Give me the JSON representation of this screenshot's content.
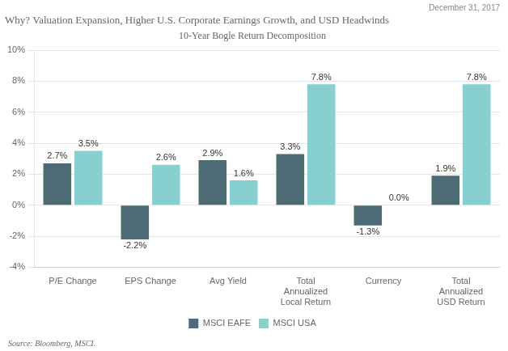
{
  "chart_data": {
    "type": "bar",
    "title": "Why? Valuation Expansion, Higher U.S. Corporate Earnings Growth, and USD Headwinds",
    "subtitle": "10-Year Bogle Return Decomposition",
    "annotations": [
      "December 31, 2017",
      "Source: Bloomberg, MSCI."
    ],
    "categories": [
      "P/E Change",
      "EPS Change",
      "Avg Yield",
      "Total\nAnnualized\nLocal Return",
      "Currency",
      "Total\nAnnualized\nUSD Return"
    ],
    "series": [
      {
        "name": "MSCI EAFE",
        "color": "#4d6b74",
        "values": [
          2.7,
          -2.2,
          2.9,
          3.3,
          -1.3,
          1.9
        ],
        "value_labels": [
          "2.7%",
          "-2.2%",
          "2.9%",
          "3.3%",
          "-1.3%",
          "1.9%"
        ]
      },
      {
        "name": "MSCI USA",
        "color": "#88d0d0",
        "values": [
          3.5,
          2.6,
          1.6,
          7.8,
          0.0,
          7.8
        ],
        "value_labels": [
          "3.5%",
          "2.6%",
          "1.6%",
          "7.8%",
          "0.0%",
          "7.8%"
        ]
      }
    ],
    "ylim": [
      -4,
      10
    ],
    "yticks": [
      {
        "value": -4,
        "label": "-4%"
      },
      {
        "value": -2,
        "label": "-2%"
      },
      {
        "value": 0,
        "label": "0%"
      },
      {
        "value": 2,
        "label": "2%"
      },
      {
        "value": 4,
        "label": "4%"
      },
      {
        "value": 6,
        "label": "6%"
      },
      {
        "value": 8,
        "label": "8%"
      },
      {
        "value": 10,
        "label": "10%"
      }
    ],
    "grid": true,
    "legend": "bottom",
    "data_labels": true
  }
}
